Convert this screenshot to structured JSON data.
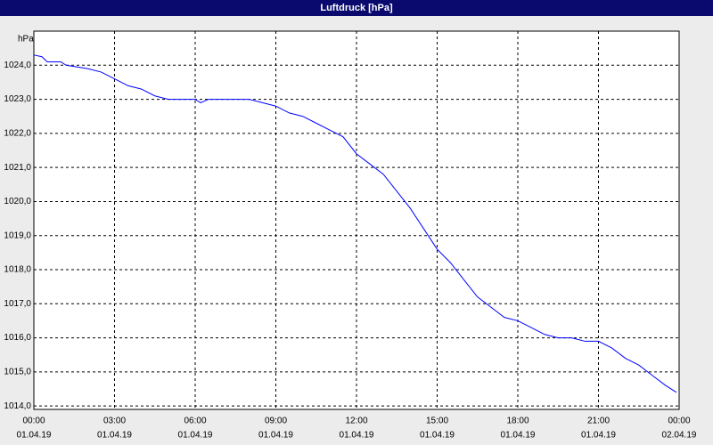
{
  "chart_data": {
    "type": "line",
    "title": "Luftdruck [hPa]",
    "y_label": "hPa",
    "x": [
      0,
      0.3,
      0.5,
      1.0,
      1.2,
      2.0,
      2.5,
      3.0,
      3.5,
      4.0,
      4.5,
      5.0,
      6.0,
      6.2,
      6.5,
      7.0,
      8.0,
      8.5,
      9.0,
      9.5,
      10.0,
      10.5,
      11.0,
      11.5,
      12.0,
      12.5,
      13.0,
      13.5,
      14.0,
      14.5,
      15.0,
      15.5,
      16.0,
      16.5,
      17.0,
      17.5,
      18.0,
      18.5,
      19.0,
      19.5,
      20.0,
      20.5,
      21.0,
      21.5,
      22.0,
      22.5,
      23.0,
      23.5,
      23.9
    ],
    "series": [
      {
        "name": "Luftdruck",
        "color": "#0000ff",
        "values": [
          1024.3,
          1024.25,
          1024.1,
          1024.1,
          1024.0,
          1023.9,
          1023.8,
          1023.6,
          1023.4,
          1023.3,
          1023.1,
          1023.0,
          1023.0,
          1022.9,
          1023.0,
          1023.0,
          1023.0,
          1022.9,
          1022.8,
          1022.6,
          1022.5,
          1022.3,
          1022.1,
          1021.9,
          1021.4,
          1021.1,
          1020.8,
          1020.3,
          1019.8,
          1019.2,
          1018.6,
          1018.2,
          1017.7,
          1017.2,
          1016.9,
          1016.6,
          1016.5,
          1016.3,
          1016.1,
          1016.0,
          1016.0,
          1015.9,
          1015.9,
          1015.7,
          1015.4,
          1015.2,
          1014.9,
          1014.6,
          1014.4
        ]
      }
    ],
    "xlim": [
      0,
      24
    ],
    "xticks": [
      {
        "value": 0,
        "label": "00:00"
      },
      {
        "value": 3,
        "label": "03:00"
      },
      {
        "value": 6,
        "label": "06:00"
      },
      {
        "value": 9,
        "label": "09:00"
      },
      {
        "value": 12,
        "label": "12:00"
      },
      {
        "value": 15,
        "label": "15:00"
      },
      {
        "value": 18,
        "label": "18:00"
      },
      {
        "value": 21,
        "label": "21:00"
      },
      {
        "value": 24,
        "label": "00:00"
      }
    ],
    "xtick_dates": [
      "01.04.19",
      "01.04.19",
      "01.04.19",
      "01.04.19",
      "01.04.19",
      "01.04.19",
      "01.04.19",
      "01.04.19",
      "02.04.19"
    ],
    "ylim": [
      1013.9,
      1025.0
    ],
    "yticks": [
      {
        "value": 1014,
        "label": "1014,0"
      },
      {
        "value": 1015,
        "label": "1015,0"
      },
      {
        "value": 1016,
        "label": "1016,0"
      },
      {
        "value": 1017,
        "label": "1017,0"
      },
      {
        "value": 1018,
        "label": "1018,0"
      },
      {
        "value": 1019,
        "label": "1019,0"
      },
      {
        "value": 1020,
        "label": "1020,0"
      },
      {
        "value": 1021,
        "label": "1021,0"
      },
      {
        "value": 1022,
        "label": "1022,0"
      },
      {
        "value": 1023,
        "label": "1023,0"
      },
      {
        "value": 1024,
        "label": "1024,0"
      }
    ],
    "grid": true
  }
}
